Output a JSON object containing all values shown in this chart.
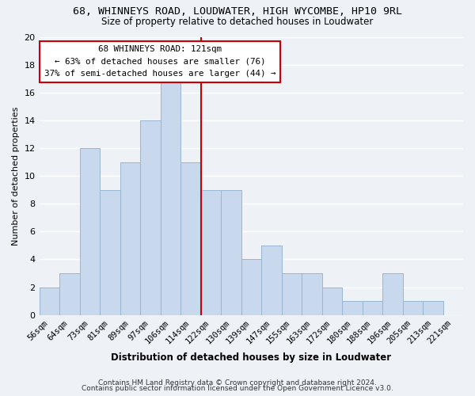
{
  "title": "68, WHINNEYS ROAD, LOUDWATER, HIGH WYCOMBE, HP10 9RL",
  "subtitle": "Size of property relative to detached houses in Loudwater",
  "xlabel": "Distribution of detached houses by size in Loudwater",
  "ylabel": "Number of detached properties",
  "bar_color": "#c8d8ed",
  "bar_edge_color": "#9ab5d0",
  "categories": [
    "56sqm",
    "64sqm",
    "73sqm",
    "81sqm",
    "89sqm",
    "97sqm",
    "106sqm",
    "114sqm",
    "122sqm",
    "130sqm",
    "139sqm",
    "147sqm",
    "155sqm",
    "163sqm",
    "172sqm",
    "180sqm",
    "188sqm",
    "196sqm",
    "205sqm",
    "213sqm",
    "221sqm"
  ],
  "values": [
    2,
    3,
    12,
    9,
    11,
    14,
    17,
    11,
    9,
    9,
    4,
    5,
    3,
    3,
    2,
    1,
    1,
    3,
    1,
    1,
    0
  ],
  "property_line_label": "68 WHINNEYS ROAD: 121sqm",
  "annotation_line1": "← 63% of detached houses are smaller (76)",
  "annotation_line2": "37% of semi-detached houses are larger (44) →",
  "ylim": [
    0,
    20
  ],
  "yticks": [
    0,
    2,
    4,
    6,
    8,
    10,
    12,
    14,
    16,
    18,
    20
  ],
  "vline_color": "#cc0000",
  "annotation_box_edge": "#cc0000",
  "footer1": "Contains HM Land Registry data © Crown copyright and database right 2024.",
  "footer2": "Contains public sector information licensed under the Open Government Licence v3.0.",
  "background_color": "#eef2f7",
  "grid_color": "#ffffff",
  "vline_index": 8
}
